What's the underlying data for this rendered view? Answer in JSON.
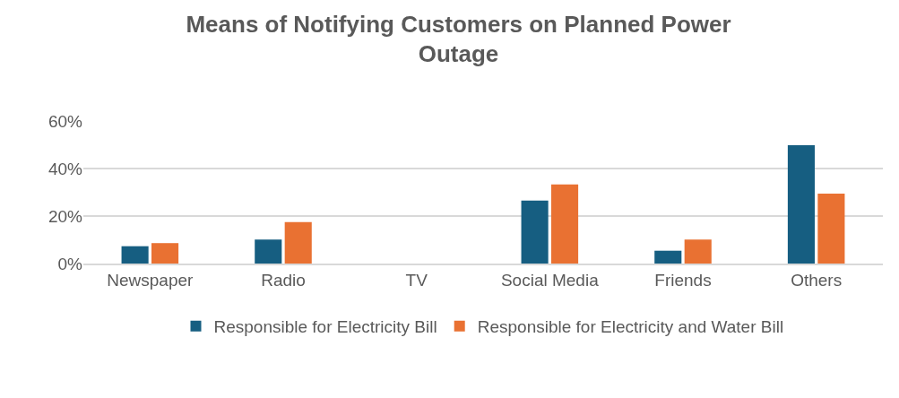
{
  "chart_data": {
    "type": "bar",
    "title": "Means of Notifying Customers on Planned Power Outage",
    "categories": [
      "Newspaper",
      "Radio",
      "TV",
      "Social Media",
      "Friends",
      "Others"
    ],
    "series": [
      {
        "name": "Responsible for Electricity Bill",
        "color": "#165e81",
        "values": [
          7.3,
          10.1,
          0,
          26.5,
          5.4,
          49.8
        ]
      },
      {
        "name": "Responsible for Electricity and Water Bill",
        "color": "#e97132",
        "values": [
          8.6,
          17.5,
          0,
          33.3,
          10.1,
          29.4
        ]
      }
    ],
    "ylim": [
      0,
      60
    ],
    "yticks": [
      {
        "value": 0,
        "label": "0%"
      },
      {
        "value": 20,
        "label": "20%"
      },
      {
        "value": 40,
        "label": "40%"
      },
      {
        "value": 60,
        "label": "60%"
      }
    ],
    "grid": "y",
    "legend": "bottom"
  }
}
